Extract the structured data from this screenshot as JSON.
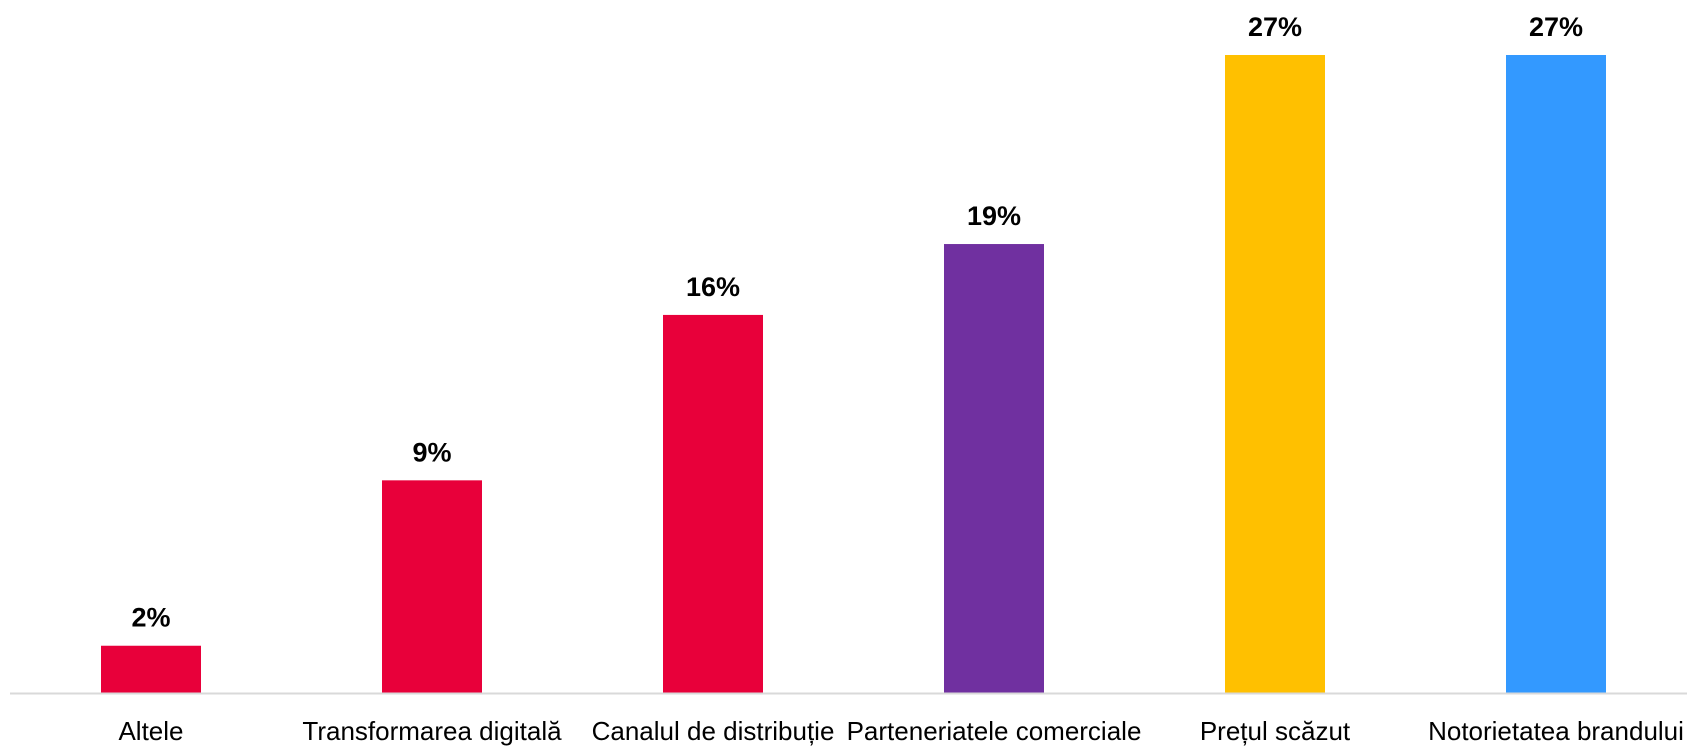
{
  "chart_data": {
    "type": "bar",
    "title": "",
    "xlabel": "",
    "ylabel": "",
    "ylim": [
      0,
      27
    ],
    "grid": false,
    "legend": "none",
    "value_suffix": "%",
    "categories": [
      "Altele",
      "Transformarea digitală",
      "Canalul de distribuție",
      "Parteneriatele comerciale",
      "Prețul scăzut",
      "Notorietatea brandului"
    ],
    "values": [
      2,
      9,
      16,
      19,
      27,
      27
    ],
    "bar_colors": [
      "#e8003a",
      "#e8003a",
      "#e8003a",
      "#7030a0",
      "#ffc000",
      "#3399ff"
    ],
    "axis_color": "#d9d9d9"
  }
}
